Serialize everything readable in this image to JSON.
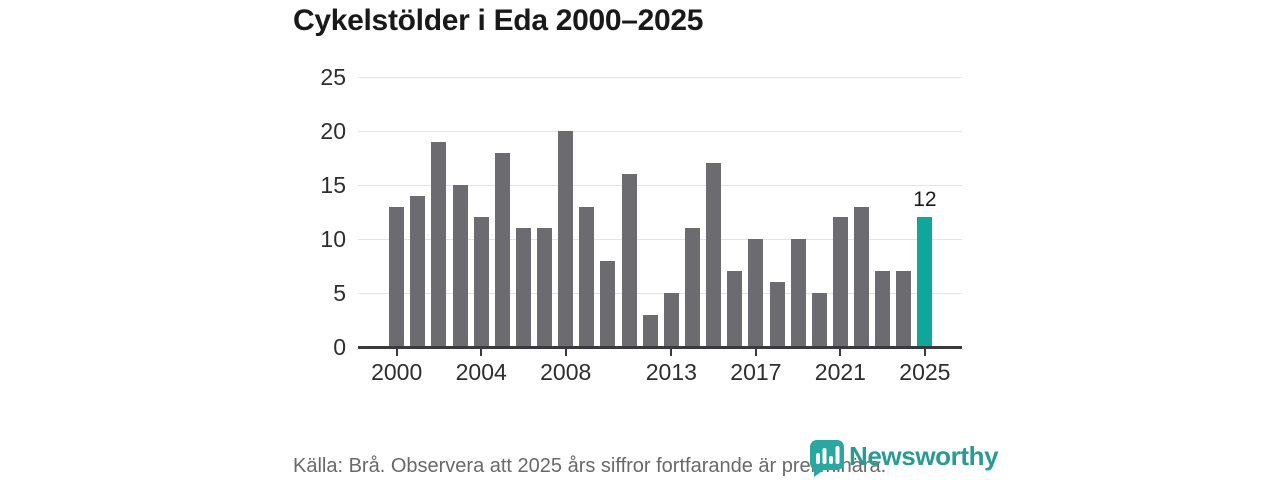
{
  "title": "Cykelstölder i Eda 2000–2025",
  "footer": {
    "source_note": "Källa: Brå. Observera att 2025 års siffror fortfarande är preliminära."
  },
  "branding": {
    "logo_text": "Newsworthy",
    "logo_color": "#2a9a94",
    "mark_color": "#2aa8a0",
    "icons": {
      "logo_mark": "bar-chart-pin-icon"
    }
  },
  "chart_data": {
    "type": "bar",
    "title": "Cykelstölder i Eda 2000–2025",
    "categories": [
      2000,
      2001,
      2002,
      2003,
      2004,
      2005,
      2006,
      2007,
      2008,
      2009,
      2010,
      2011,
      2012,
      2013,
      2014,
      2015,
      2016,
      2017,
      2018,
      2019,
      2020,
      2021,
      2022,
      2023,
      2024,
      2025
    ],
    "values": [
      13,
      14,
      19,
      15,
      12,
      18,
      11,
      11,
      20,
      13,
      8,
      16,
      3,
      5,
      11,
      17,
      7,
      10,
      6,
      10,
      5,
      12,
      13,
      7,
      7,
      12
    ],
    "x_tick_labels": [
      "2000",
      "2004",
      "2008",
      "2013",
      "2017",
      "2021",
      "2025"
    ],
    "y_ticks": [
      0,
      5,
      10,
      15,
      20,
      25
    ],
    "ylim": [
      0,
      25
    ],
    "xlabel": "",
    "ylabel": "",
    "grid": "horizontal",
    "legend": "none",
    "bar_color": "#6b6b70",
    "highlight": {
      "category": 2025,
      "color": "#0fa79c",
      "data_label": "12"
    },
    "axis_color": "#3a3a3e",
    "gridline_color": "#e3e3e3",
    "tick_label_color": "#2e2e2e"
  }
}
